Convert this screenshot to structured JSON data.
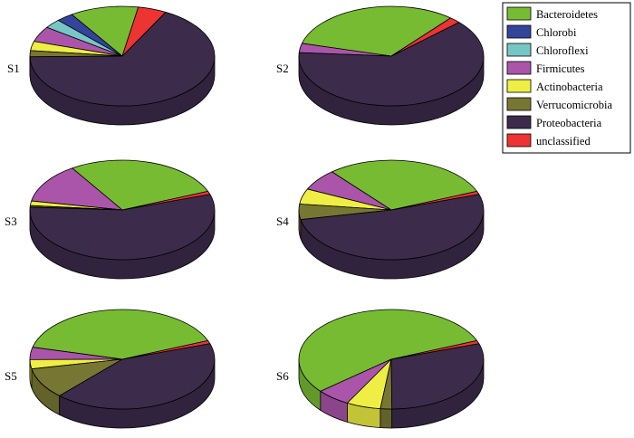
{
  "chart_data": {
    "type": "pie",
    "style": "3d-pie",
    "legend_position": "top-right",
    "legend": [
      {
        "name": "Bacteroidetes",
        "color": "#77bb33"
      },
      {
        "name": "Chlorobi",
        "color": "#33449a"
      },
      {
        "name": "Chloroflexi",
        "color": "#77c6c6"
      },
      {
        "name": "Firmicutes",
        "color": "#aa55aa"
      },
      {
        "name": "Actinobacteria",
        "color": "#eeee44"
      },
      {
        "name": "Verrucomicrobia",
        "color": "#777733"
      },
      {
        "name": "Proteobacteria",
        "color": "#3c2b4a"
      },
      {
        "name": "unclassified",
        "color": "#ee3333"
      }
    ],
    "pies": [
      {
        "label": "S1",
        "start_angle": 80,
        "slices": [
          {
            "name": "Bacteroidetes",
            "value": 12
          },
          {
            "name": "Chlorobi",
            "value": 3
          },
          {
            "name": "Chloroflexi",
            "value": 3
          },
          {
            "name": "Firmicutes",
            "value": 5
          },
          {
            "name": "Actinobacteria",
            "value": 3
          },
          {
            "name": "Verrucomicrobia",
            "value": 2
          },
          {
            "name": "Proteobacteria",
            "value": 67
          },
          {
            "name": "unclassified",
            "value": 5
          }
        ]
      },
      {
        "label": "S2",
        "start_angle": 50,
        "slices": [
          {
            "name": "Bacteroidetes",
            "value": 32
          },
          {
            "name": "Chlorobi",
            "value": 0
          },
          {
            "name": "Chloroflexi",
            "value": 0
          },
          {
            "name": "Firmicutes",
            "value": 3
          },
          {
            "name": "Actinobacteria",
            "value": 0
          },
          {
            "name": "Verrucomicrobia",
            "value": 0
          },
          {
            "name": "Proteobacteria",
            "value": 63
          },
          {
            "name": "unclassified",
            "value": 2
          }
        ]
      },
      {
        "label": "S3",
        "start_angle": 22,
        "slices": [
          {
            "name": "Bacteroidetes",
            "value": 28
          },
          {
            "name": "Chlorobi",
            "value": 0
          },
          {
            "name": "Chloroflexi",
            "value": 0
          },
          {
            "name": "Firmicutes",
            "value": 13
          },
          {
            "name": "Actinobacteria",
            "value": 1.5
          },
          {
            "name": "Verrucomicrobia",
            "value": 0.5
          },
          {
            "name": "Proteobacteria",
            "value": 56
          },
          {
            "name": "unclassified",
            "value": 1
          }
        ]
      },
      {
        "label": "S4",
        "start_angle": 22,
        "slices": [
          {
            "name": "Bacteroidetes",
            "value": 30
          },
          {
            "name": "Chlorobi",
            "value": 0
          },
          {
            "name": "Chloroflexi",
            "value": 0
          },
          {
            "name": "Firmicutes",
            "value": 7
          },
          {
            "name": "Actinobacteria",
            "value": 5
          },
          {
            "name": "Verrucomicrobia",
            "value": 5
          },
          {
            "name": "Proteobacteria",
            "value": 52
          },
          {
            "name": "unclassified",
            "value": 1
          }
        ]
      },
      {
        "label": "S5",
        "start_angle": 22,
        "slices": [
          {
            "name": "Bacteroidetes",
            "value": 40
          },
          {
            "name": "Chlorobi",
            "value": 0
          },
          {
            "name": "Chloroflexi",
            "value": 0
          },
          {
            "name": "Firmicutes",
            "value": 4
          },
          {
            "name": "Actinobacteria",
            "value": 3
          },
          {
            "name": "Verrucomicrobia",
            "value": 10
          },
          {
            "name": "Proteobacteria",
            "value": 42
          },
          {
            "name": "unclassified",
            "value": 1
          }
        ]
      },
      {
        "label": "S6",
        "start_angle": 22,
        "slices": [
          {
            "name": "Bacteroidetes",
            "value": 55
          },
          {
            "name": "Chlorobi",
            "value": 0
          },
          {
            "name": "Chloroflexi",
            "value": 0
          },
          {
            "name": "Firmicutes",
            "value": 6
          },
          {
            "name": "Actinobacteria",
            "value": 6
          },
          {
            "name": "Verrucomicrobia",
            "value": 2
          },
          {
            "name": "Proteobacteria",
            "value": 30
          },
          {
            "name": "unclassified",
            "value": 1
          }
        ]
      }
    ]
  }
}
